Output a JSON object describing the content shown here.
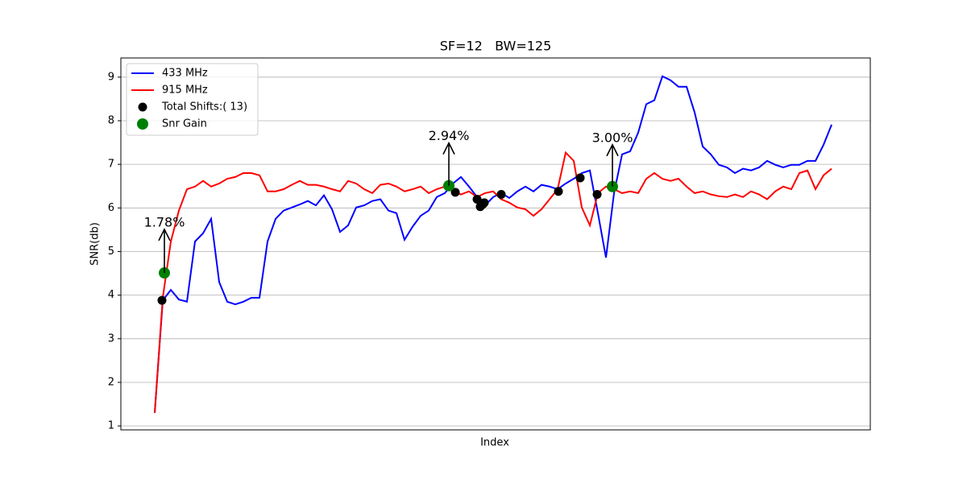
{
  "chart_data": {
    "type": "line",
    "title": "SF=12   BW=125",
    "x_label": "Index",
    "y_label": "SNR(db)",
    "x": [
      0,
      1,
      2,
      3,
      4,
      5,
      6,
      7,
      8,
      9,
      10,
      11,
      12,
      13,
      14,
      15,
      16,
      17,
      18,
      19,
      20,
      21,
      22,
      23,
      24,
      25,
      26,
      27,
      28,
      29,
      30,
      31,
      32,
      33,
      34,
      35,
      36,
      37,
      38,
      39,
      40,
      41,
      42,
      43,
      44,
      45,
      46,
      47,
      48,
      49,
      50,
      51,
      52,
      53,
      54,
      55,
      56,
      57,
      58,
      59,
      60,
      61,
      62,
      63,
      64,
      65,
      66,
      67,
      68,
      69,
      70,
      71,
      72,
      73,
      74,
      75,
      76,
      77,
      78,
      79,
      80,
      81,
      82,
      83,
      84
    ],
    "xlim": [
      -4.2,
      88.8
    ],
    "ylim": [
      0.91,
      9.44
    ],
    "yticks": [
      1,
      2,
      3,
      4,
      5,
      6,
      7,
      8,
      9
    ],
    "grid": true,
    "legend": "upper left",
    "series": [
      {
        "name": "433 MHz",
        "style": "line",
        "color": "#0000ff",
        "values": [
          1.3,
          3.88,
          4.12,
          3.9,
          3.85,
          5.23,
          5.42,
          5.75,
          4.3,
          3.85,
          3.79,
          3.85,
          3.94,
          3.94,
          5.23,
          5.75,
          5.94,
          6.01,
          6.08,
          6.16,
          6.06,
          6.29,
          5.97,
          5.45,
          5.6,
          6.01,
          6.06,
          6.16,
          6.2,
          5.94,
          5.88,
          5.27,
          5.57,
          5.82,
          5.94,
          6.25,
          6.34,
          6.56,
          6.71,
          6.49,
          6.25,
          6.06,
          6.25,
          6.34,
          6.23,
          6.38,
          6.49,
          6.38,
          6.53,
          6.49,
          6.43,
          6.56,
          6.67,
          6.8,
          6.86,
          5.88,
          4.86,
          6.34,
          7.23,
          7.3,
          7.73,
          8.38,
          8.47,
          9.02,
          8.93,
          8.78,
          8.78,
          8.19,
          7.41,
          7.23,
          6.99,
          6.93,
          6.8,
          6.9,
          6.86,
          6.93,
          7.08,
          6.99,
          6.93,
          6.99,
          6.99,
          7.08,
          7.08,
          7.45,
          7.91
        ]
      },
      {
        "name": "915 MHz",
        "style": "line",
        "color": "#ff0000",
        "values": [
          1.3,
          3.94,
          5.23,
          5.94,
          6.43,
          6.49,
          6.62,
          6.49,
          6.56,
          6.67,
          6.71,
          6.8,
          6.8,
          6.75,
          6.38,
          6.38,
          6.43,
          6.53,
          6.62,
          6.53,
          6.53,
          6.49,
          6.43,
          6.38,
          6.62,
          6.56,
          6.43,
          6.34,
          6.53,
          6.56,
          6.49,
          6.38,
          6.43,
          6.49,
          6.34,
          6.43,
          6.49,
          6.38,
          6.31,
          6.38,
          6.25,
          6.34,
          6.38,
          6.2,
          6.12,
          6.01,
          5.97,
          5.82,
          5.97,
          6.2,
          6.43,
          7.27,
          7.08,
          6.01,
          5.6,
          6.34,
          6.49,
          6.43,
          6.34,
          6.38,
          6.34,
          6.67,
          6.8,
          6.67,
          6.62,
          6.67,
          6.49,
          6.34,
          6.38,
          6.31,
          6.27,
          6.25,
          6.31,
          6.25,
          6.38,
          6.31,
          6.2,
          6.38,
          6.49,
          6.43,
          6.8,
          6.86,
          6.43,
          6.75,
          6.9
        ]
      },
      {
        "name": "Total Shifts:( 13)",
        "style": "scatter",
        "color": "#000000",
        "x": [
          0.9,
          1.2,
          36.5,
          37.3,
          40.0,
          40.4,
          40.7,
          40.9,
          43.0,
          50.1,
          52.8,
          54.9,
          56.8
        ],
        "values": [
          3.88,
          4.52,
          6.51,
          6.36,
          6.2,
          6.03,
          6.08,
          6.12,
          6.31,
          6.38,
          6.69,
          6.31,
          6.51
        ]
      },
      {
        "name": "Snr Gain",
        "style": "scatter",
        "color": "#008000",
        "x": [
          1.2,
          36.5,
          56.8
        ],
        "values": [
          4.51,
          6.51,
          6.49
        ]
      }
    ],
    "annotations": [
      {
        "text": "1.78%",
        "x": 1.2,
        "y": 5.51
      },
      {
        "text": "2.94%",
        "x": 36.5,
        "y": 7.49
      },
      {
        "text": "3.00%",
        "x": 56.8,
        "y": 7.45
      }
    ]
  }
}
